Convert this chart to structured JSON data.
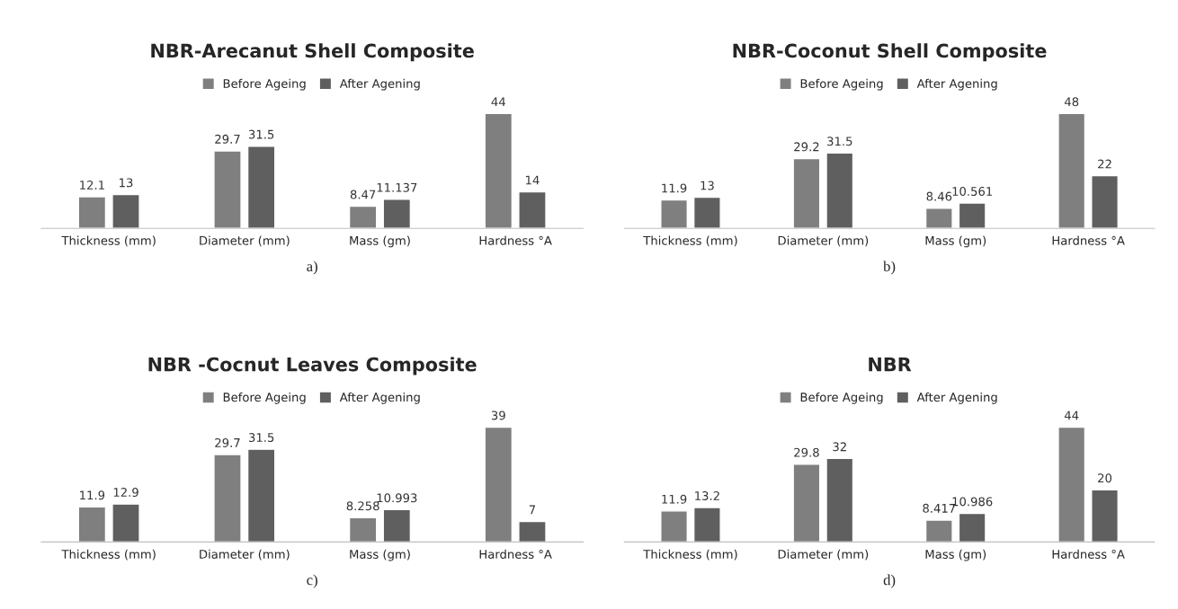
{
  "chart_data": [
    {
      "type": "bar",
      "title": "NBR-Arecanut Shell Composite",
      "categories": [
        "Thickness (mm)",
        "Diameter (mm)",
        "Mass (gm)",
        "Hardness °A"
      ],
      "series": [
        {
          "name": "Before Ageing",
          "color": "#7f7f7f",
          "values": [
            12.1,
            29.7,
            8.47,
            44
          ]
        },
        {
          "name": "After Agening",
          "color": "#5f5f5f",
          "values": [
            13,
            31.5,
            11.137,
            14
          ]
        }
      ],
      "data_labels": true,
      "legend": "top",
      "tick_labels": "x",
      "grid": false,
      "annotations": [
        "a)"
      ]
    },
    {
      "type": "bar",
      "title": "NBR-Coconut Shell Composite",
      "categories": [
        "Thickness (mm)",
        "Diameter (mm)",
        "Mass (gm)",
        "Hardness °A"
      ],
      "series": [
        {
          "name": "Before Ageing",
          "color": "#7f7f7f",
          "values": [
            11.9,
            29.2,
            8.46,
            48
          ]
        },
        {
          "name": "After Agening",
          "color": "#5f5f5f",
          "values": [
            13,
            31.5,
            10.561,
            22
          ]
        }
      ],
      "data_labels": true,
      "legend": "top",
      "tick_labels": "x",
      "grid": false,
      "annotations": [
        "b)"
      ]
    },
    {
      "type": "bar",
      "title": "NBR -Cocnut Leaves Composite",
      "categories": [
        "Thickness (mm)",
        "Diameter (mm)",
        "Mass (gm)",
        "Hardness °A"
      ],
      "series": [
        {
          "name": "Before Ageing",
          "color": "#7f7f7f",
          "values": [
            11.9,
            29.7,
            8.258,
            39
          ]
        },
        {
          "name": "After Agening",
          "color": "#5f5f5f",
          "values": [
            12.9,
            31.5,
            10.993,
            7
          ]
        }
      ],
      "data_labels": true,
      "legend": "top",
      "tick_labels": "x",
      "grid": false,
      "annotations": [
        "c)"
      ]
    },
    {
      "type": "bar",
      "title": "NBR",
      "categories": [
        "Thickness (mm)",
        "Diameter (mm)",
        "Mass (gm)",
        "Hardness °A"
      ],
      "series": [
        {
          "name": "Before Ageing",
          "color": "#7f7f7f",
          "values": [
            11.9,
            29.8,
            8.417,
            44
          ]
        },
        {
          "name": "After Agening",
          "color": "#5f5f5f",
          "values": [
            13.2,
            32,
            10.986,
            20
          ]
        }
      ],
      "data_labels": true,
      "legend": "top",
      "tick_labels": "x",
      "grid": false,
      "annotations": [
        "d)"
      ]
    }
  ]
}
